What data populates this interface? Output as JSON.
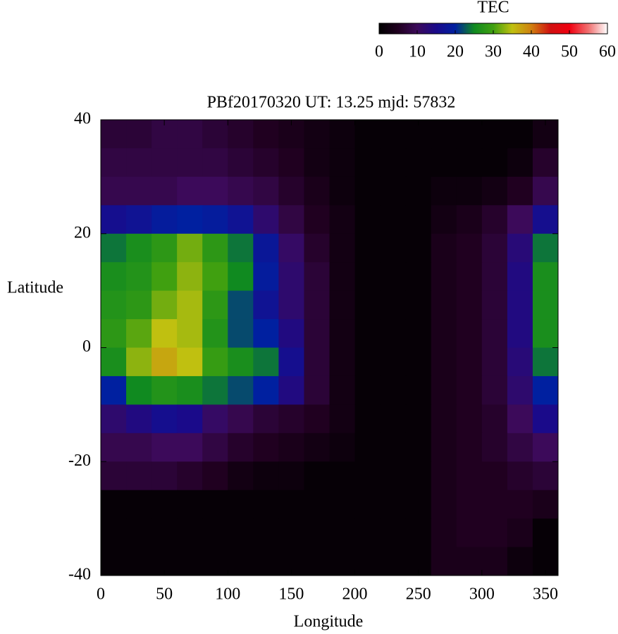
{
  "chart_data": {
    "type": "heatmap",
    "title": "PBf20170320  UT: 13.25  mjd: 57832",
    "x_label": "Longitude",
    "y_label": "Latitude",
    "colorbar_label": "TEC",
    "x": [
      10,
      30,
      50,
      70,
      90,
      110,
      130,
      150,
      170,
      190,
      210,
      230,
      250,
      270,
      290,
      310,
      330,
      350
    ],
    "y": [
      37.5,
      32.5,
      27.5,
      22.5,
      17.5,
      12.5,
      7.5,
      2.5,
      -2.5,
      -7.5,
      -12.5,
      -17.5,
      -22.5,
      -27.5,
      -32.5,
      -37.5
    ],
    "z": [
      [
        7,
        7,
        8,
        8,
        7,
        6,
        5,
        4,
        3,
        2,
        1,
        1,
        1,
        1,
        1,
        1,
        1,
        3
      ],
      [
        8,
        8,
        8,
        8,
        8,
        7,
        6,
        5,
        3,
        2,
        1,
        1,
        1,
        1,
        1,
        1,
        2,
        6
      ],
      [
        9,
        9,
        9,
        10,
        10,
        9,
        8,
        6,
        4,
        2,
        1,
        1,
        1,
        2,
        2,
        3,
        5,
        9
      ],
      [
        16,
        17,
        19,
        20,
        19,
        17,
        12,
        8,
        5,
        3,
        1,
        1,
        1,
        3,
        4,
        6,
        10,
        16
      ],
      [
        24,
        26,
        28,
        32,
        28,
        24,
        18,
        11,
        6,
        3,
        1,
        1,
        1,
        4,
        5,
        7,
        13,
        24
      ],
      [
        26,
        27,
        30,
        33,
        30,
        25,
        19,
        12,
        7,
        3,
        1,
        1,
        1,
        4,
        5,
        7,
        14,
        26
      ],
      [
        27,
        28,
        32,
        34,
        28,
        22,
        17,
        12,
        7,
        3,
        1,
        1,
        1,
        4,
        5,
        7,
        14,
        26
      ],
      [
        28,
        31,
        35,
        34,
        27,
        22,
        20,
        14,
        7,
        3,
        1,
        1,
        1,
        4,
        5,
        7,
        14,
        26
      ],
      [
        26,
        33,
        37,
        35,
        29,
        26,
        24,
        16,
        7,
        3,
        1,
        1,
        1,
        4,
        5,
        7,
        13,
        24
      ],
      [
        20,
        25,
        27,
        26,
        24,
        22,
        20,
        14,
        7,
        3,
        1,
        1,
        1,
        4,
        5,
        7,
        12,
        20
      ],
      [
        12,
        14,
        16,
        15,
        11,
        9,
        7,
        6,
        5,
        3,
        1,
        1,
        1,
        4,
        5,
        6,
        10,
        15
      ],
      [
        9,
        9,
        10,
        10,
        8,
        6,
        5,
        4,
        3,
        2,
        1,
        1,
        1,
        4,
        5,
        6,
        8,
        10
      ],
      [
        7,
        7,
        7,
        6,
        5,
        3,
        2,
        2,
        1,
        1,
        1,
        1,
        1,
        4,
        5,
        5,
        6,
        7
      ],
      [
        1,
        1,
        1,
        1,
        1,
        1,
        1,
        1,
        1,
        1,
        1,
        1,
        1,
        4,
        5,
        5,
        5,
        4
      ],
      [
        1,
        1,
        1,
        1,
        1,
        1,
        1,
        1,
        1,
        1,
        1,
        1,
        1,
        4,
        5,
        5,
        4,
        1
      ],
      [
        1,
        1,
        1,
        1,
        1,
        1,
        1,
        1,
        1,
        1,
        1,
        1,
        1,
        4,
        4,
        4,
        2,
        1
      ]
    ],
    "xlim": [
      0,
      360
    ],
    "xticks": [
      0,
      50,
      100,
      150,
      200,
      250,
      300,
      350
    ],
    "ylim": [
      -40,
      40
    ],
    "yticks": [
      -40,
      -20,
      0,
      20,
      40
    ],
    "zlim": [
      0,
      60
    ],
    "zticks": [
      0,
      10,
      20,
      30,
      40,
      50,
      60
    ],
    "colormap": [
      "#000000",
      "#200020",
      "#3c0a5a",
      "#1a0a8a",
      "#0020a0",
      "#108a20",
      "#40a010",
      "#c0c010",
      "#d08010",
      "#d01010",
      "#f00010",
      "#f07070",
      "#ffffff"
    ]
  }
}
